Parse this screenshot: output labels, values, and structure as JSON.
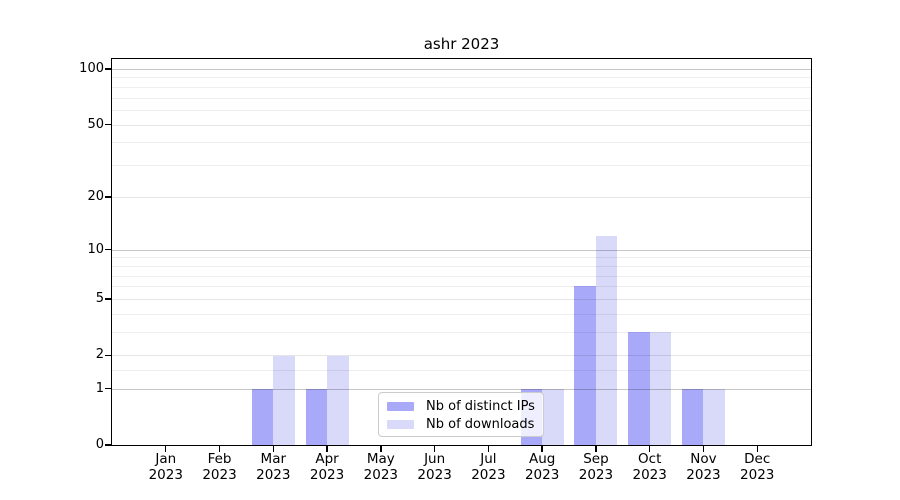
{
  "chart_data": {
    "type": "bar",
    "title": "ashr 2023",
    "categories": [
      "Jan",
      "Feb",
      "Mar",
      "Apr",
      "May",
      "Jun",
      "Jul",
      "Aug",
      "Sep",
      "Oct",
      "Nov",
      "Dec"
    ],
    "x_year": "2023",
    "series": [
      {
        "name": "Nb of distinct IPs",
        "color": "#a9a9f9",
        "values": [
          0,
          0,
          1,
          1,
          0,
          0,
          0,
          1,
          6,
          3,
          1,
          0
        ]
      },
      {
        "name": "Nb of downloads",
        "color": "#d9d9f9",
        "values": [
          0,
          0,
          2,
          2,
          0,
          0,
          0,
          1,
          12,
          3,
          1,
          0
        ]
      }
    ],
    "yscale": "log1p",
    "ylabel": "",
    "xlabel": "",
    "yticks": [
      0,
      1,
      2,
      5,
      10,
      20,
      50,
      100
    ],
    "emphasized_gridlines": [
      1,
      10,
      100
    ],
    "minor_yticks": [
      1.5,
      3,
      4,
      6,
      7,
      8,
      9,
      30,
      40,
      60,
      70,
      80,
      90
    ],
    "ylim": [
      0,
      113
    ],
    "grid": "horizontal",
    "legend_position": "lower center",
    "legend_title": ""
  },
  "colors": {
    "background": "#ffffff",
    "axis": "#000000",
    "bar_distinct_ips": "#a9a9f9",
    "bar_downloads": "#d9d9f9",
    "gridline_major": "#c7c7c7",
    "gridline_minor": "#efefef",
    "legend_border": "#cccccc"
  }
}
